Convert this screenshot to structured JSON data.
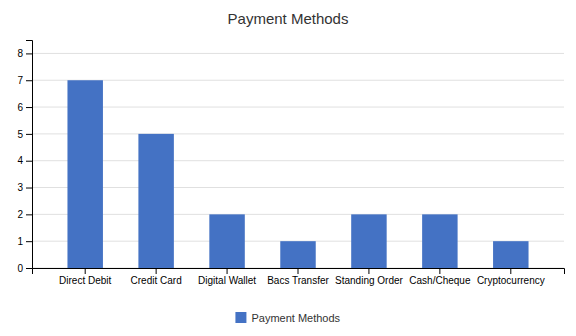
{
  "chart_data": {
    "type": "bar",
    "title": "Payment Methods",
    "categories": [
      "Direct Debit",
      "Credit Card",
      "Digital Wallet",
      "Bacs Transfer",
      "Standing Order",
      "Cash/Cheque",
      "Cryptocurrency"
    ],
    "series": [
      {
        "name": "Payment Methods",
        "color": "#4472C4",
        "values": [
          7,
          5,
          2,
          1,
          2,
          2,
          1
        ]
      }
    ],
    "ylim": [
      0,
      8.5
    ],
    "yticks": [
      0,
      1,
      2,
      3,
      4,
      5,
      6,
      7,
      8
    ],
    "grid": true,
    "legend": "bottom"
  }
}
